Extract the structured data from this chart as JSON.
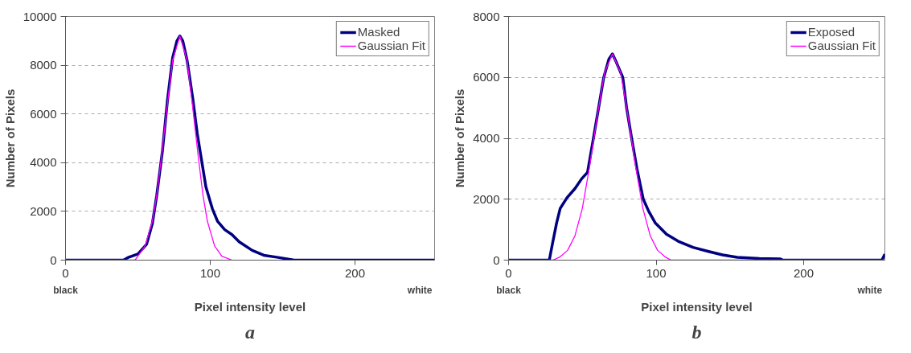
{
  "chart_data": [
    {
      "type": "line",
      "xlabel": "Pixel intensity level",
      "ylabel": "Number of Pixels",
      "annotations": [
        "black",
        "white",
        "a"
      ],
      "xlim": [
        0,
        255
      ],
      "xticks": [
        0,
        100,
        200
      ],
      "ylim": [
        0,
        10000
      ],
      "yticks": [
        0,
        2000,
        4000,
        6000,
        8000,
        10000
      ],
      "grid": "y",
      "legend": "top right",
      "series": [
        {
          "name": "Masked",
          "color": "#000080",
          "x": [
            0,
            40,
            43,
            50,
            56,
            60,
            63,
            67,
            70.5,
            74,
            77,
            79,
            81,
            84,
            88,
            91,
            94,
            97,
            101.5,
            105,
            110,
            115,
            120,
            129,
            137,
            146,
            158,
            255
          ],
          "values": [
            0,
            0,
            100,
            250,
            650,
            1500,
            2650,
            4500,
            6600,
            8300,
            9000,
            9200,
            9000,
            8200,
            6600,
            5200,
            4100,
            3000,
            2100,
            1600,
            1250,
            1050,
            750,
            400,
            200,
            120,
            0,
            0
          ]
        },
        {
          "name": "Gaussian Fit",
          "color": "#ff00ff",
          "x": [
            0,
            48,
            50,
            55,
            60,
            63,
            66,
            70,
            74,
            79,
            84,
            88,
            92,
            95,
            98,
            103,
            108,
            115
          ],
          "values": [
            0,
            0,
            160,
            580,
            1600,
            2650,
            4100,
            6200,
            8200,
            9200,
            8200,
            6200,
            4100,
            2650,
            1600,
            580,
            160,
            0
          ]
        }
      ]
    },
    {
      "type": "line",
      "xlabel": "Pixel intensity level",
      "ylabel": "Number of Pixels",
      "annotations": [
        "black",
        "white",
        "b"
      ],
      "xlim": [
        0,
        255
      ],
      "xticks": [
        0,
        100,
        200
      ],
      "ylim": [
        0,
        8000
      ],
      "yticks": [
        0,
        2000,
        4000,
        6000,
        8000
      ],
      "grid": "y",
      "legend": "top right",
      "series": [
        {
          "name": "Exposed",
          "color": "#000080",
          "x": [
            0,
            27.6,
            30,
            32.6,
            35,
            39.6,
            45,
            49.5,
            53.5,
            57.5,
            61,
            64.5,
            68,
            70.4,
            73,
            77.4,
            80,
            83.4,
            87,
            91.3,
            95,
            99.3,
            107,
            115,
            125,
            135,
            145,
            155,
            170,
            184,
            186,
            253,
            255
          ],
          "values": [
            0,
            0,
            600,
            1230,
            1700,
            2050,
            2350,
            2670,
            2880,
            4000,
            5000,
            6000,
            6600,
            6770,
            6500,
            6000,
            5000,
            4000,
            3000,
            2000,
            1600,
            1230,
            850,
            620,
            420,
            290,
            170,
            90,
            50,
            40,
            0,
            0,
            200
          ]
        },
        {
          "name": "Gaussian Fit",
          "color": "#ff00ff",
          "x": [
            0,
            30,
            35,
            40,
            45,
            50,
            55,
            60,
            65,
            70.4,
            76,
            81,
            86,
            91,
            96,
            101,
            106,
            110,
            255
          ],
          "values": [
            0,
            0,
            110,
            320,
            800,
            1700,
            3100,
            4700,
            6150,
            6770,
            6150,
            4700,
            3100,
            1700,
            800,
            320,
            110,
            0,
            0
          ]
        }
      ]
    }
  ]
}
